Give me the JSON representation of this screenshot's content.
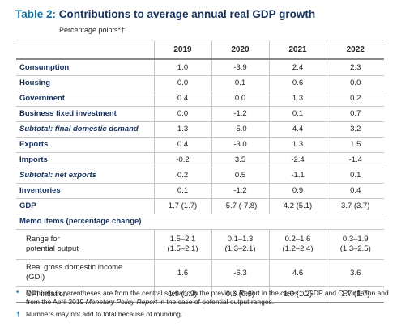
{
  "title": {
    "label": "Table 2:",
    "text": "Contributions to average annual real GDP growth",
    "subtitle": "Percentage points*†"
  },
  "table": {
    "columns": [
      "2019",
      "2020",
      "2021",
      "2022"
    ],
    "rows": [
      {
        "label": "Consumption",
        "values": [
          "1.0",
          "-3.9",
          "2.4",
          "2.3"
        ]
      },
      {
        "label": "Housing",
        "values": [
          "0.0",
          "0.1",
          "0.6",
          "0.0"
        ]
      },
      {
        "label": "Government",
        "values": [
          "0.4",
          "0.0",
          "1.3",
          "0.2"
        ]
      },
      {
        "label": "Business fixed investment",
        "values": [
          "0.0",
          "-1.2",
          "0.1",
          "0.7"
        ]
      },
      {
        "label": "Subtotal: final domestic demand",
        "values": [
          "1.3",
          "-5.0",
          "4.4",
          "3.2"
        ]
      },
      {
        "label": "Exports",
        "values": [
          "0.4",
          "-3.0",
          "1.3",
          "1.5"
        ]
      },
      {
        "label": "Imports",
        "values": [
          "-0.2",
          "3.5",
          "-2.4",
          "-1.4"
        ]
      },
      {
        "label": "Subtotal: net exports",
        "values": [
          "0.2",
          "0.5",
          "-1.1",
          "0.1"
        ]
      },
      {
        "label": "Inventories",
        "values": [
          "0.1",
          "-1.2",
          "0.9",
          "0.4"
        ]
      },
      {
        "label": "GDP",
        "values": [
          "1.7 (1.7)",
          "-5.7 (-7.8)",
          "4.2 (5.1)",
          "3.7 (3.7)"
        ]
      }
    ],
    "memo_header": "Memo items (percentage change)",
    "memo_rows": [
      {
        "label_line1": "Range for",
        "label_line2": "potential output",
        "values": [
          [
            "1.5–2.1",
            "(1.5–2.1)"
          ],
          [
            "0.1–1.3",
            "(1.3–2.1)"
          ],
          [
            "0.2–1.6",
            "(1.2–2.4)"
          ],
          [
            "0.3–1.9",
            "(1.3–2.5)"
          ]
        ]
      },
      {
        "label_line1": "Real gross domestic income",
        "label_line2": "(GDI)",
        "values": [
          "1.6",
          "-6.3",
          "4.6",
          "3.6"
        ]
      },
      {
        "label_line1": "CPI inflation",
        "values": [
          "1.9 (1.9)",
          "0.6 (0.6)",
          "1.0 (1.2)",
          "1.7 (1.7)"
        ]
      }
    ]
  },
  "notes": [
    {
      "symbol": "*",
      "text_before": "Numbers in parentheses are from the central scenario in the previous Report in the cases of GDP and CPI inflation and from the April 2019 ",
      "text_italic": "Monetary Policy Report",
      "text_after": " in the case of potential output ranges."
    },
    {
      "symbol": "†",
      "text": "Numbers may not add to total because of rounding."
    }
  ]
}
